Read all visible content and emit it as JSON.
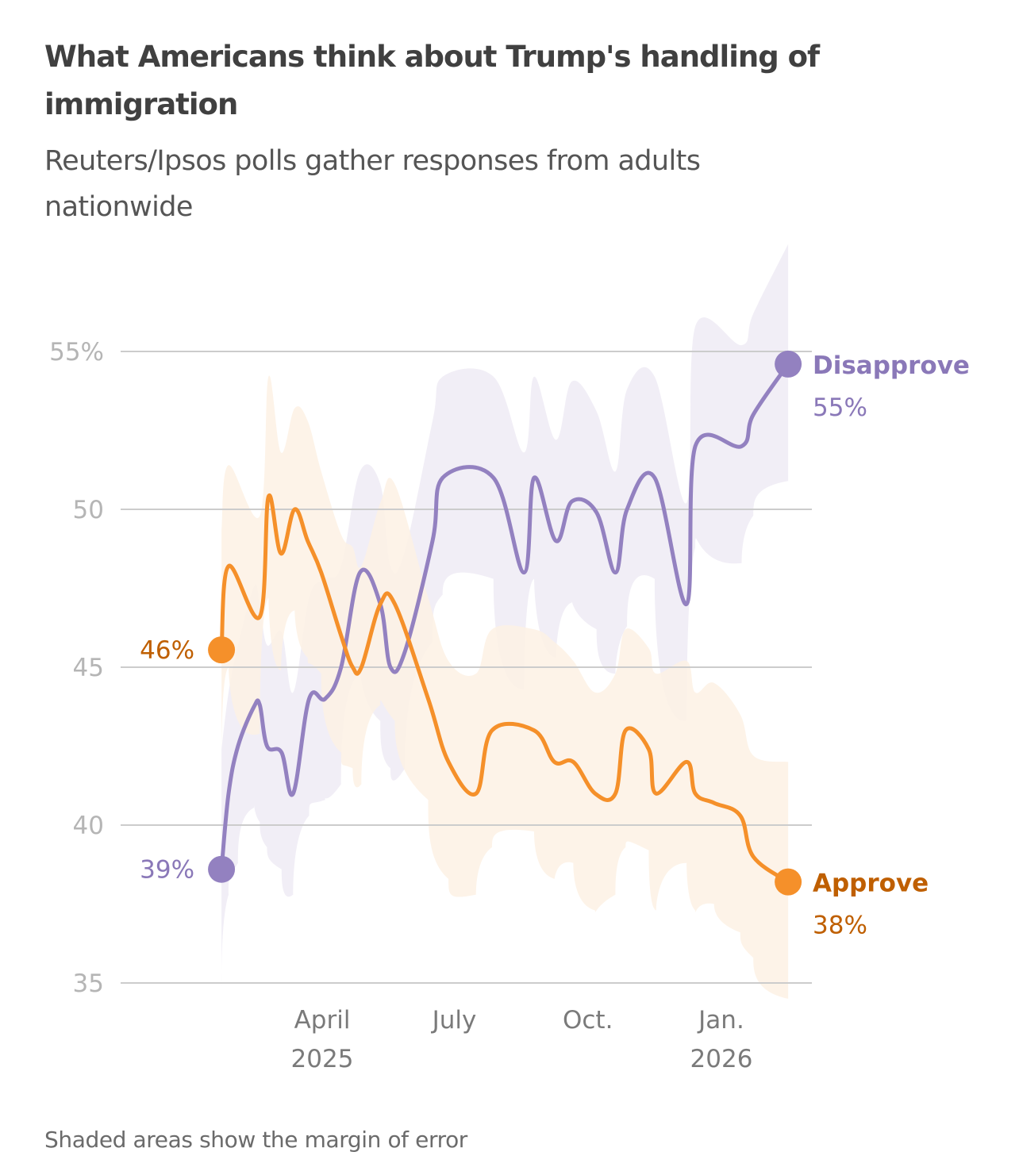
{
  "header": {
    "title": "What Americans think about Trump's handling of immigration",
    "subtitle": "Reuters/Ipsos polls gather responses from adults nationwide"
  },
  "footer": {
    "note": "Shaded areas show the margin of error"
  },
  "colors": {
    "approve_line": "#f5902a",
    "approve_label": "#bf5f00",
    "approve_band": "#fdf1e4",
    "disapprove_line": "#9381c0",
    "disapprove_label": "#8a78b8",
    "disapprove_band": "#eeebf5",
    "grid": "#cccccc"
  },
  "chart_data": {
    "type": "line",
    "title": "What Americans think about Trump's handling of immigration",
    "subtitle": "Reuters/Ipsos polls gather responses from adults nationwide",
    "xlabel": "",
    "ylabel": "",
    "x_unit": "days since Jan. 1, 2025",
    "x_range": [
      0,
      430
    ],
    "ylim": [
      35,
      57
    ],
    "y_ticks": [
      {
        "value": 55,
        "label": "55%"
      },
      {
        "value": 50,
        "label": "50"
      },
      {
        "value": 45,
        "label": "45"
      },
      {
        "value": 40,
        "label": "40"
      },
      {
        "value": 35,
        "label": "35"
      }
    ],
    "x_ticks": [
      {
        "value": 90,
        "label": "April",
        "sublabel": "2025"
      },
      {
        "value": 181,
        "label": "July",
        "sublabel": ""
      },
      {
        "value": 273,
        "label": "Oct.",
        "sublabel": ""
      },
      {
        "value": 365,
        "label": "Jan.",
        "sublabel": "2026"
      }
    ],
    "grid": true,
    "legend": "inline-end-labels",
    "series": [
      {
        "name": "Disapprove",
        "start_label": "39%",
        "end_label": "55%",
        "margin": 3.2,
        "x": [
          20.6,
          25.5,
          32,
          43,
          47,
          52,
          62,
          70,
          81,
          92,
          103,
          116,
          130,
          137,
          147,
          166,
          173,
          208,
          229,
          236,
          251,
          262,
          279,
          292,
          300,
          319,
          341,
          347,
          379,
          387,
          411
        ],
        "y": [
          38.6,
          41.0,
          42.5,
          43.75,
          43.8,
          42.5,
          42.3,
          41.0,
          44.0,
          44.0,
          45.0,
          48.0,
          47.0,
          45.0,
          45.5,
          49.0,
          51.0,
          51.0,
          48.0,
          51.0,
          49.0,
          50.25,
          49.9,
          48.0,
          50.0,
          51.0,
          47.0,
          52.0,
          52.0,
          53.0,
          54.6
        ]
      },
      {
        "name": "Approve",
        "start_label": "46%",
        "end_label": "38%",
        "margin": 3.2,
        "x": [
          20.6,
          25.5,
          47,
          53,
          61.6,
          71,
          80,
          89.3,
          103,
          111,
          117,
          130,
          140,
          163,
          177,
          196,
          207,
          236,
          250,
          263,
          278,
          292,
          299,
          315,
          320,
          341,
          347,
          360,
          378,
          387,
          411
        ],
        "y": [
          45.55,
          48.2,
          46.6,
          50.4,
          48.6,
          50.0,
          49.0,
          48.0,
          46.0,
          45.0,
          45.0,
          47.0,
          47.0,
          44.0,
          42.0,
          41.0,
          43.0,
          43.0,
          42.0,
          42.0,
          41.0,
          41.0,
          43.0,
          42.4,
          41.0,
          42.0,
          41.0,
          40.7,
          40.3,
          39.0,
          38.2
        ]
      }
    ]
  }
}
